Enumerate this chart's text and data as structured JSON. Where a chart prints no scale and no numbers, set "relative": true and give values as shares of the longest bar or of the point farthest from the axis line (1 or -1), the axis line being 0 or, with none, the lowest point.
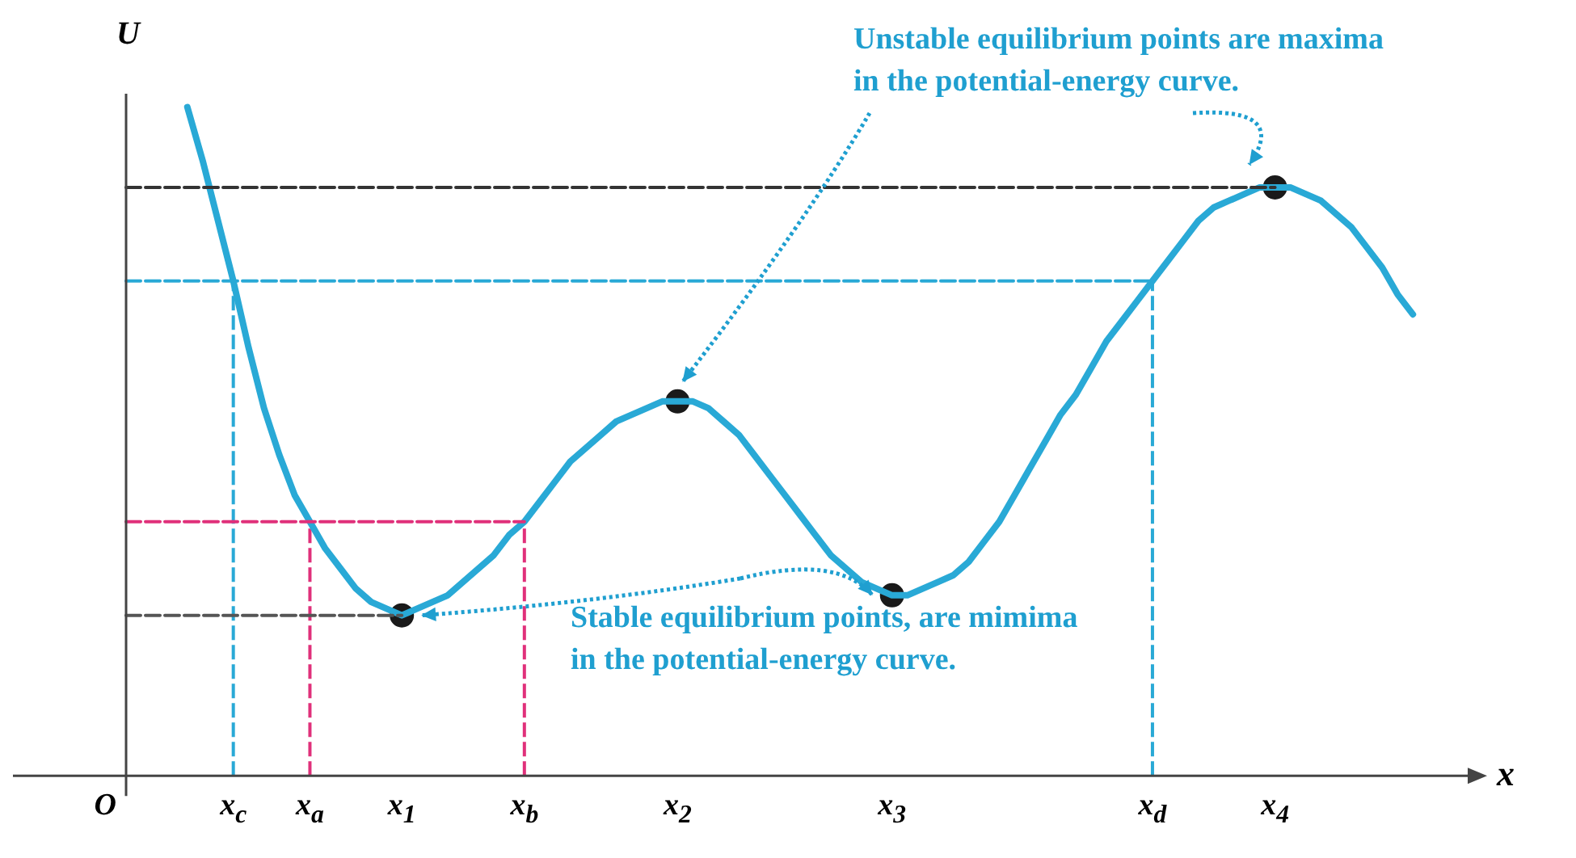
{
  "chart_data": {
    "type": "line",
    "relative": true,
    "ylabel": "U",
    "xlabel": "x",
    "grid": false,
    "legend": false,
    "marker": "none",
    "line_style": "solid",
    "categories": [
      null,
      null,
      null,
      null,
      null,
      null,
      null,
      "x$_{c}$",
      null,
      null,
      null,
      null,
      "x$_{a}$",
      null,
      null,
      null,
      null,
      null,
      "x$_{1}$",
      null,
      null,
      null,
      null,
      null,
      null,
      null,
      "x$_{b}$",
      null,
      null,
      null,
      null,
      null,
      null,
      null,
      null,
      null,
      "x$_{2}$",
      null,
      null,
      null,
      null,
      null,
      null,
      null,
      null,
      null,
      null,
      null,
      null,
      null,
      "x$_{3}$",
      null,
      null,
      null,
      null,
      null,
      null,
      null,
      null,
      null,
      null,
      null,
      null,
      null,
      null,
      null,
      null,
      "x$_{d}$",
      null,
      null,
      null,
      null,
      null,
      null,
      null,
      "x$_{4}$",
      null,
      null,
      null,
      null,
      null,
      null,
      null,
      null,
      null,
      null,
      null,
      null,
      null
    ],
    "annotations": [
      "Unstable equilibrium points are maxima in the potential-energy curve.",
      "Stable equilibrium points, are mimima in the potential-energy curve.",
      "O"
    ],
    "ref_lines": [
      {
        "axis": "x",
        "value": "x$_{c}$",
        "color": "#29a9d6",
        "line_style": "dashed"
      },
      {
        "axis": "x",
        "value": "x$_{a}$",
        "color": "#e0307a",
        "line_style": "dashed"
      },
      {
        "axis": "x",
        "value": "x$_{b}$",
        "color": "#e0307a",
        "line_style": "dashed"
      },
      {
        "axis": "x",
        "value": "x$_{d}$",
        "color": "#29a9d6",
        "line_style": "dashed"
      }
    ],
    "series": [
      {
        "color": "#333333",
        "line_style": "dashed",
        "values": [
          0.88,
          0.88,
          0.88,
          0.88,
          0.88,
          0.88,
          0.88,
          0.88,
          0.88,
          0.88,
          0.88,
          0.88,
          0.88,
          0.88,
          0.88,
          0.88,
          0.88,
          0.88,
          0.88,
          0.88,
          0.88,
          0.88,
          0.88,
          0.88,
          0.88,
          0.88,
          0.88,
          0.88,
          0.88,
          0.88,
          0.88,
          0.88,
          0.88,
          0.88,
          0.88,
          0.88,
          0.88,
          0.88,
          0.88,
          0.88,
          0.88,
          0.88,
          0.88,
          0.88,
          0.88,
          0.88,
          0.88,
          0.88,
          0.88,
          0.88,
          0.88,
          0.88,
          0.88,
          0.88,
          0.88,
          0.88,
          0.88,
          0.88,
          0.88,
          0.88,
          0.88,
          0.88,
          0.88,
          0.88,
          0.88,
          0.88,
          0.88,
          0.88,
          0.88,
          0.88,
          0.88,
          0.88,
          0.88,
          0.88,
          0.88,
          0.88,
          null,
          null,
          null,
          null,
          null,
          null,
          null,
          null,
          null,
          null,
          null,
          null,
          null
        ]
      },
      {
        "color": "#29a9d6",
        "line_style": "dashed",
        "values": [
          0.74,
          0.74,
          0.74,
          0.74,
          0.74,
          0.74,
          0.74,
          0.74,
          0.74,
          0.74,
          0.74,
          0.74,
          0.74,
          0.74,
          0.74,
          0.74,
          0.74,
          0.74,
          0.74,
          0.74,
          0.74,
          0.74,
          0.74,
          0.74,
          0.74,
          0.74,
          0.74,
          0.74,
          0.74,
          0.74,
          0.74,
          0.74,
          0.74,
          0.74,
          0.74,
          0.74,
          0.74,
          0.74,
          0.74,
          0.74,
          0.74,
          0.74,
          0.74,
          0.74,
          0.74,
          0.74,
          0.74,
          0.74,
          0.74,
          0.74,
          0.74,
          0.74,
          0.74,
          0.74,
          0.74,
          0.74,
          0.74,
          0.74,
          0.74,
          0.74,
          0.74,
          0.74,
          0.74,
          0.74,
          0.74,
          0.74,
          0.74,
          0.74,
          null,
          null,
          null,
          null,
          null,
          null,
          null,
          null,
          null,
          null,
          null,
          null,
          null,
          null,
          null,
          null,
          null,
          null,
          null,
          null,
          null
        ]
      },
      {
        "color": "#e0307a",
        "line_style": "dashed",
        "values": [
          0.38,
          0.38,
          0.38,
          0.38,
          0.38,
          0.38,
          0.38,
          0.38,
          0.38,
          0.38,
          0.38,
          0.38,
          0.38,
          0.38,
          0.38,
          0.38,
          0.38,
          0.38,
          0.38,
          0.38,
          0.38,
          0.38,
          0.38,
          0.38,
          0.38,
          0.38,
          0.38,
          null,
          null,
          null,
          null,
          null,
          null,
          null,
          null,
          null,
          null,
          null,
          null,
          null,
          null,
          null,
          null,
          null,
          null,
          null,
          null,
          null,
          null,
          null,
          null,
          null,
          null,
          null,
          null,
          null,
          null,
          null,
          null,
          null,
          null,
          null,
          null,
          null,
          null,
          null,
          null,
          null,
          null,
          null,
          null,
          null,
          null,
          null,
          null,
          null,
          null,
          null,
          null,
          null,
          null,
          null,
          null,
          null,
          null,
          null,
          null,
          null,
          null
        ]
      },
      {
        "color": "#555555",
        "line_style": "dashed",
        "values": [
          0.24,
          0.24,
          0.24,
          0.24,
          0.24,
          0.24,
          0.24,
          0.24,
          0.24,
          0.24,
          0.24,
          0.24,
          0.24,
          0.24,
          0.24,
          0.24,
          0.24,
          0.24,
          0.24,
          null,
          null,
          null,
          null,
          null,
          null,
          null,
          null,
          null,
          null,
          null,
          null,
          null,
          null,
          null,
          null,
          null,
          null,
          null,
          null,
          null,
          null,
          null,
          null,
          null,
          null,
          null,
          null,
          null,
          null,
          null,
          null,
          null,
          null,
          null,
          null,
          null,
          null,
          null,
          null,
          null,
          null,
          null,
          null,
          null,
          null,
          null,
          null,
          null,
          null,
          null,
          null,
          null,
          null,
          null,
          null,
          null,
          null,
          null,
          null,
          null,
          null,
          null,
          null,
          null,
          null,
          null,
          null,
          null,
          null
        ]
      },
      {
        "color": "#29a9d6",
        "values": [
          null,
          null,
          null,
          null,
          1.0,
          0.92,
          0.83,
          0.74,
          0.64,
          0.55,
          0.48,
          0.42,
          0.38,
          0.34,
          0.31,
          0.28,
          0.26,
          0.25,
          0.24,
          0.25,
          0.26,
          0.27,
          0.29,
          0.31,
          0.33,
          0.36,
          0.38,
          0.41,
          0.44,
          0.47,
          0.49,
          0.51,
          0.53,
          0.54,
          0.55,
          0.56,
          0.56,
          0.56,
          0.55,
          0.53,
          0.51,
          0.48,
          0.45,
          0.42,
          0.39,
          0.36,
          0.33,
          0.31,
          0.29,
          0.28,
          0.27,
          0.27,
          0.28,
          0.29,
          0.3,
          0.32,
          0.35,
          0.38,
          0.42,
          0.46,
          0.5,
          0.54,
          0.57,
          0.61,
          0.65,
          0.68,
          0.71,
          0.74,
          0.77,
          0.8,
          0.83,
          0.85,
          0.86,
          0.87,
          0.88,
          0.88,
          0.88,
          0.87,
          0.86,
          0.84,
          0.82,
          0.79,
          0.76,
          0.72,
          0.69,
          null,
          null,
          null,
          null
        ]
      },
      {
        "type": "scatter",
        "marker": "circle",
        "color": "#1a1a1a",
        "values": [
          null,
          null,
          null,
          null,
          null,
          null,
          null,
          null,
          null,
          null,
          null,
          null,
          null,
          null,
          null,
          null,
          null,
          null,
          0.24,
          null,
          null,
          null,
          null,
          null,
          null,
          null,
          null,
          null,
          null,
          null,
          null,
          null,
          null,
          null,
          null,
          null,
          0.56,
          null,
          null,
          null,
          null,
          null,
          null,
          null,
          null,
          null,
          null,
          null,
          null,
          null,
          0.27,
          null,
          null,
          null,
          null,
          null,
          null,
          null,
          null,
          null,
          null,
          null,
          null,
          null,
          null,
          null,
          null,
          null,
          null,
          null,
          null,
          null,
          null,
          null,
          null,
          0.88,
          null,
          null,
          null,
          null,
          null,
          null,
          null,
          null,
          null,
          null,
          null,
          null,
          null
        ]
      }
    ]
  }
}
